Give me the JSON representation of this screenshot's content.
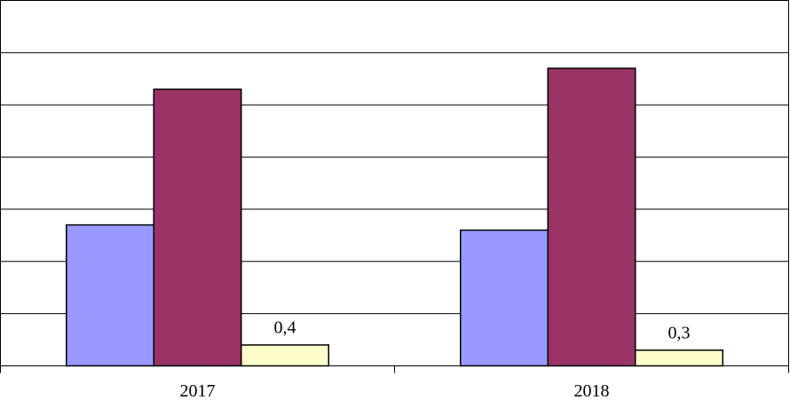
{
  "chart_data": {
    "type": "bar",
    "categories": [
      "2017",
      "2018"
    ],
    "series": [
      {
        "color": "#9999ff",
        "values": [
          2.7,
          2.6
        ]
      },
      {
        "color": "#993366",
        "values": [
          5.3,
          5.7
        ]
      },
      {
        "color": "#ffffcc",
        "values": [
          0.4,
          0.3
        ],
        "value_labels": [
          "0,4",
          "0,3"
        ]
      }
    ],
    "ylim": [
      0,
      7
    ],
    "yticks": [
      0,
      1,
      2,
      3,
      4,
      5,
      6,
      7
    ],
    "grid": true
  }
}
